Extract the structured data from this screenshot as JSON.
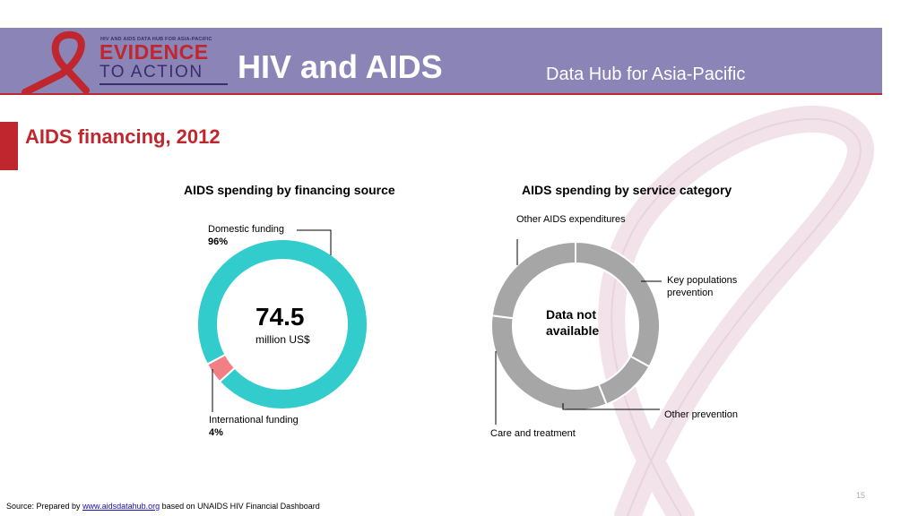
{
  "header": {
    "logo_tagline": "HIV AND AIDS DATA HUB FOR ASIA-PACIFIC",
    "logo_line1": "EVIDENCE",
    "logo_line2": "TO ACTION",
    "title": "HIV and AIDS",
    "subtitle": "Data Hub for Asia-Pacific"
  },
  "page": {
    "title": "AIDS financing, 2012",
    "page_number": "15"
  },
  "colors": {
    "header_bg": "#8b84b7",
    "accent_red": "#c0262d",
    "domestic": "#33cccc",
    "international": "#f07f86",
    "not_available": "#a6a6a6"
  },
  "chart_data": [
    {
      "type": "pie",
      "title": "AIDS spending by financing source",
      "center_value": "74.5",
      "center_unit": "million US$",
      "slices": [
        {
          "label": "Domestic funding",
          "value": 96,
          "value_text": "96%",
          "color": "#33cccc"
        },
        {
          "label": "International funding",
          "value": 4,
          "value_text": "4%",
          "color": "#f07f86"
        }
      ]
    },
    {
      "type": "pie",
      "title": "AIDS spending by service category",
      "center_text": "Data not available",
      "slices": [
        {
          "label": "Key populations prevention",
          "value": 33,
          "color": "#a6a6a6"
        },
        {
          "label": "Other prevention",
          "value": 11,
          "color": "#a6a6a6"
        },
        {
          "label": "Care and treatment",
          "value": 33,
          "color": "#a6a6a6"
        },
        {
          "label": "Other AIDS expenditures",
          "value": 23,
          "color": "#a6a6a6"
        }
      ]
    }
  ],
  "footer": {
    "source_prefix": "Source: Prepared by ",
    "source_link": "www.aidsdatahub.org",
    "source_suffix": "  based on UNAIDS HIV Financial Dashboard"
  }
}
